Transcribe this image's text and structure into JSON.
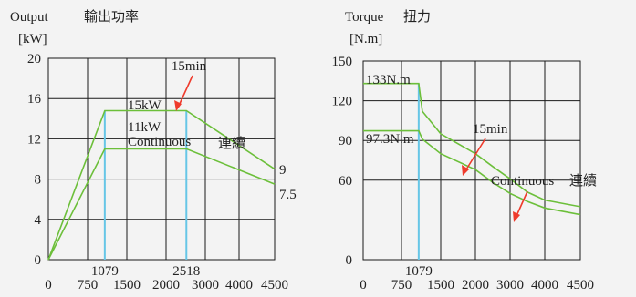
{
  "colors": {
    "background": "#f3f3f3",
    "grid": "#1a1a1a",
    "curve": "#6cbf3a",
    "marker": "#66c6e6",
    "arrow": "#ef3b2c",
    "text": "#222222"
  },
  "chart_data": [
    {
      "type": "line",
      "title": "Output",
      "title_cjk": "輸出功率",
      "ylabel": "[kW]",
      "xlabel": "",
      "xlim": [
        0,
        4500
      ],
      "ylim": [
        0,
        20
      ],
      "grid": true,
      "x_ticks": [
        "0",
        "750",
        "1500",
        "2000",
        "3000",
        "4000",
        "4500"
      ],
      "y_ticks": [
        "0",
        "4",
        "8",
        "12",
        "16",
        "20"
      ],
      "x_marker_labels": [
        "1079",
        "2518"
      ],
      "x_markers": [
        1079,
        2518
      ],
      "series": [
        {
          "name": "15min",
          "x": [
            0,
            1079,
            2518,
            4500
          ],
          "y": [
            0,
            14.8,
            14.8,
            9
          ]
        },
        {
          "name": "Continuous",
          "x": [
            0,
            1079,
            2518,
            4500
          ],
          "y": [
            0,
            11,
            11,
            7.5
          ]
        }
      ],
      "annotations": {
        "arrow_label": "15min",
        "upper_label": "15kW",
        "lower_label": "11kW",
        "continuous_label": "Continuous",
        "continuous_cjk": "連續",
        "end_upper": "9",
        "end_lower": "7.5"
      }
    },
    {
      "type": "line",
      "title": "Torque",
      "title_cjk": "扭力",
      "ylabel": "[N.m]",
      "xlabel": "",
      "xlim": [
        0,
        4500
      ],
      "ylim": [
        0,
        150
      ],
      "grid": true,
      "x_ticks": [
        "0",
        "750",
        "1500",
        "2000",
        "3000",
        "4000",
        "4500"
      ],
      "y_ticks": [
        "0",
        "60",
        "90",
        "120",
        "150"
      ],
      "x_marker_labels": [
        "1079"
      ],
      "x_markers": [
        1079
      ],
      "series": [
        {
          "name": "15min",
          "x": [
            0,
            1079,
            1150,
            1500,
            2000,
            2518,
            3000,
            3500,
            4000,
            4500
          ],
          "y": [
            133,
            133,
            112,
            95,
            80,
            70,
            61,
            51,
            45,
            40
          ]
        },
        {
          "name": "Continuous",
          "x": [
            0,
            1079,
            1150,
            1500,
            2000,
            2518,
            3000,
            3500,
            4000,
            4500
          ],
          "y": [
            97.3,
            97.3,
            91,
            80,
            68,
            58,
            50,
            44,
            39,
            34
          ]
        }
      ],
      "annotations": {
        "upper_label": "133N.m",
        "lower_label": "97.3N.m",
        "arrow_label": "15min",
        "continuous_label": "Continuous",
        "continuous_cjk": "連續"
      }
    }
  ]
}
